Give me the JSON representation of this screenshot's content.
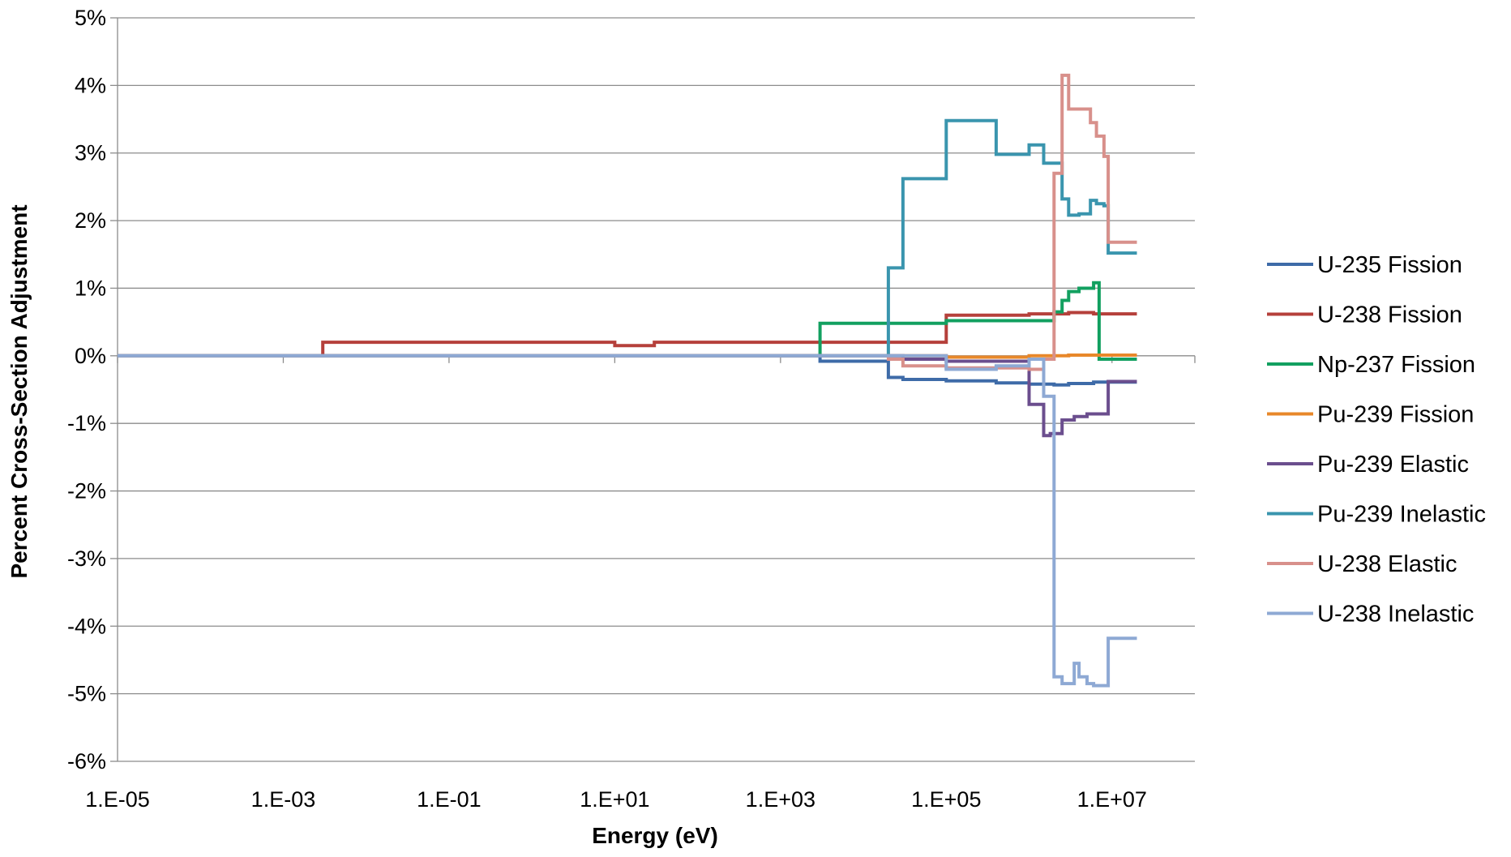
{
  "chart_data": {
    "type": "line",
    "title": "",
    "xlabel": "Energy (eV)",
    "ylabel": "Percent Cross-Section Adjustment",
    "x_scale": "log",
    "xlim": [
      1e-05,
      100000000.0
    ],
    "ylim": [
      -6,
      5
    ],
    "x_tick_values": [
      1e-05,
      0.001,
      0.1,
      10.0,
      1000.0,
      100000.0,
      10000000.0
    ],
    "x_tick_labels": [
      "1.E-05",
      "1.E-03",
      "1.E-01",
      "1.E+01",
      "1.E+03",
      "1.E+05",
      "1.E+07"
    ],
    "y_tick_values": [
      5,
      4,
      3,
      2,
      1,
      0,
      -1,
      -2,
      -3,
      -4,
      -5,
      -6
    ],
    "y_tick_labels": [
      "5%",
      "4%",
      "3%",
      "2%",
      "1%",
      "0%",
      "-1%",
      "-2%",
      "-3%",
      "-4%",
      "-5%",
      "-6%"
    ],
    "grid": "horizontal",
    "legend_position": "right",
    "series": [
      {
        "name": "U-235 Fission",
        "color": "#3E6BA8",
        "x": [
          1e-05,
          3000,
          3000,
          20000,
          20000,
          30000,
          30000,
          100000,
          100000,
          400000,
          400000,
          1000000,
          1000000,
          2000000,
          2000000,
          3000000,
          3000000,
          6000000,
          6000000,
          20000000
        ],
        "y": [
          0,
          0,
          -0.08,
          -0.08,
          -0.32,
          -0.32,
          -0.35,
          -0.35,
          -0.37,
          -0.37,
          -0.4,
          -0.4,
          -0.42,
          -0.42,
          -0.43,
          -0.43,
          -0.41,
          -0.41,
          -0.39,
          -0.39
        ]
      },
      {
        "name": "U-238 Fission",
        "color": "#B5403B",
        "x": [
          1e-05,
          0.003,
          0.003,
          10,
          10,
          30,
          30,
          100000,
          100000,
          1000000,
          1000000,
          3000000,
          3000000,
          6000000,
          6000000,
          20000000
        ],
        "y": [
          0,
          0,
          0.2,
          0.2,
          0.15,
          0.15,
          0.2,
          0.2,
          0.6,
          0.6,
          0.62,
          0.62,
          0.64,
          0.64,
          0.62,
          0.62
        ]
      },
      {
        "name": "Np-237 Fission",
        "color": "#12A060",
        "x": [
          1e-05,
          3000,
          3000,
          100000,
          100000,
          2000000,
          2000000,
          2500000,
          2500000,
          3000000,
          3000000,
          4000000,
          4000000,
          6000000,
          6000000,
          7000000,
          7000000,
          20000000
        ],
        "y": [
          0,
          0,
          0.48,
          0.48,
          0.52,
          0.52,
          0.65,
          0.65,
          0.82,
          0.82,
          0.95,
          0.95,
          1.0,
          1.0,
          1.08,
          1.08,
          -0.05,
          -0.05
        ]
      },
      {
        "name": "Pu-239 Fission",
        "color": "#E8882A",
        "x": [
          1e-05,
          100000,
          100000,
          1000000,
          1000000,
          3000000,
          3000000,
          20000000
        ],
        "y": [
          0,
          0,
          -0.02,
          -0.02,
          0,
          0,
          0.01,
          0.01
        ]
      },
      {
        "name": "Pu-239 Elastic",
        "color": "#6B4E8E",
        "x": [
          1e-05,
          30000,
          30000,
          100000,
          100000,
          1000000,
          1000000,
          1500000,
          1500000,
          1800000,
          1800000,
          2500000,
          2500000,
          3500000,
          3500000,
          5000000,
          5000000,
          9000000,
          9000000,
          20000000
        ],
        "y": [
          0,
          0,
          -0.05,
          -0.05,
          -0.08,
          -0.08,
          -0.72,
          -0.72,
          -1.18,
          -1.18,
          -1.15,
          -1.15,
          -0.95,
          -0.95,
          -0.9,
          -0.9,
          -0.86,
          -0.86,
          -0.38,
          -0.38
        ]
      },
      {
        "name": "Pu-239 Inelastic",
        "color": "#3A95AE",
        "x": [
          1e-05,
          20000,
          20000,
          30000,
          30000,
          100000,
          100000,
          400000,
          400000,
          1000000,
          1000000,
          1500000,
          1500000,
          2500000,
          2500000,
          3000000,
          3000000,
          4000000,
          4000000,
          5500000,
          5500000,
          6500000,
          6500000,
          8000000,
          8000000,
          9000000,
          9000000,
          20000000
        ],
        "y": [
          0,
          0,
          1.3,
          1.3,
          2.62,
          2.62,
          3.48,
          3.48,
          2.98,
          2.98,
          3.12,
          3.12,
          2.85,
          2.85,
          2.32,
          2.32,
          2.08,
          2.08,
          2.1,
          2.1,
          2.3,
          2.3,
          2.25,
          2.25,
          2.22,
          2.22,
          1.52,
          1.52
        ]
      },
      {
        "name": "U-238 Elastic",
        "color": "#D8908B",
        "x": [
          1e-05,
          20000,
          20000,
          30000,
          30000,
          100000,
          100000,
          1000000,
          1000000,
          1500000,
          1500000,
          2000000,
          2000000,
          2500000,
          2500000,
          3000000,
          3000000,
          5500000,
          5500000,
          6500000,
          6500000,
          8000000,
          8000000,
          9000000,
          9000000,
          20000000
        ],
        "y": [
          0,
          0,
          -0.05,
          -0.05,
          -0.15,
          -0.15,
          -0.18,
          -0.18,
          -0.2,
          -0.2,
          -0.05,
          -0.05,
          2.7,
          2.7,
          4.15,
          4.15,
          3.65,
          3.65,
          3.45,
          3.45,
          3.25,
          3.25,
          2.95,
          2.95,
          1.68,
          1.68
        ]
      },
      {
        "name": "U-238 Inelastic",
        "color": "#8EA9D4",
        "x": [
          1e-05,
          100000,
          100000,
          400000,
          400000,
          1000000,
          1000000,
          1500000,
          1500000,
          2000000,
          2000000,
          2500000,
          2500000,
          3500000,
          3500000,
          4000000,
          4000000,
          5000000,
          5000000,
          6000000,
          6000000,
          9000000,
          9000000,
          20000000
        ],
        "y": [
          0,
          0,
          -0.2,
          -0.2,
          -0.15,
          -0.15,
          -0.05,
          -0.05,
          -0.6,
          -0.6,
          -4.75,
          -4.75,
          -4.85,
          -4.85,
          -4.55,
          -4.55,
          -4.75,
          -4.75,
          -4.85,
          -4.85,
          -4.88,
          -4.88,
          -4.18,
          -4.18
        ]
      }
    ]
  }
}
